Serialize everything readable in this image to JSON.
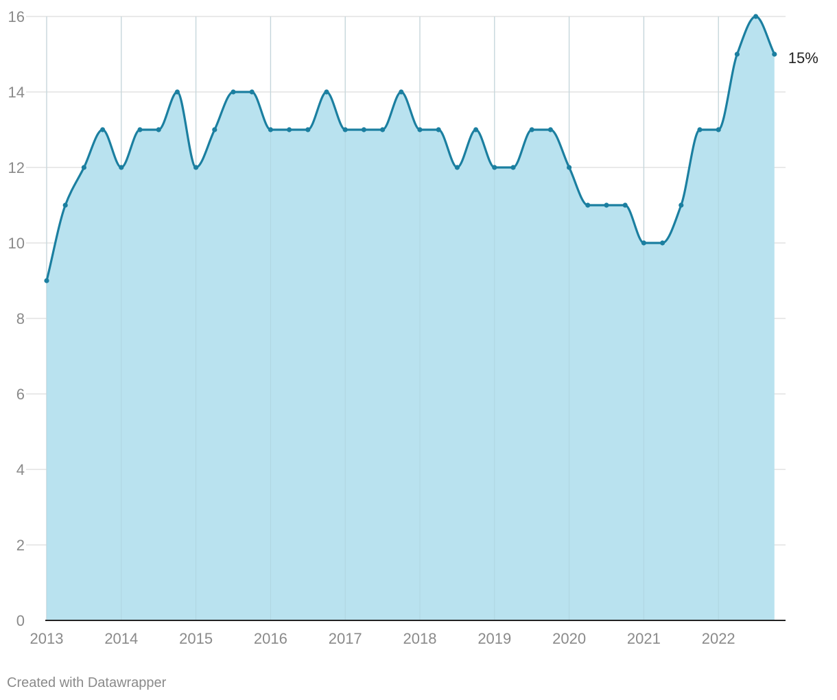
{
  "chart_data": {
    "type": "area",
    "x": [
      "2013 Q1",
      "2013 Q2",
      "2013 Q3",
      "2013 Q4",
      "2014 Q1",
      "2014 Q2",
      "2014 Q3",
      "2014 Q4",
      "2015 Q1",
      "2015 Q2",
      "2015 Q3",
      "2015 Q4",
      "2016 Q1",
      "2016 Q2",
      "2016 Q3",
      "2016 Q4",
      "2017 Q1",
      "2017 Q2",
      "2017 Q3",
      "2017 Q4",
      "2018 Q1",
      "2018 Q2",
      "2018 Q3",
      "2018 Q4",
      "2019 Q1",
      "2019 Q2",
      "2019 Q3",
      "2019 Q4",
      "2020 Q1",
      "2020 Q2",
      "2020 Q3",
      "2020 Q4",
      "2021 Q1",
      "2021 Q2",
      "2021 Q3",
      "2021 Q4",
      "2022 Q1",
      "2022 Q2",
      "2022 Q3",
      "2022 Q4"
    ],
    "series": [
      {
        "values": [
          9,
          11,
          12,
          13,
          12,
          13,
          13,
          14,
          12,
          13,
          14,
          14,
          13,
          13,
          13,
          14,
          13,
          13,
          13,
          14,
          13,
          13,
          12,
          13,
          12,
          12,
          13,
          13,
          12,
          11,
          11,
          11,
          10,
          10,
          11,
          13,
          13,
          15,
          16,
          15
        ]
      }
    ],
    "x_tick_labels": [
      "2013",
      "2014",
      "2015",
      "2016",
      "2017",
      "2018",
      "2019",
      "2020",
      "2021",
      "2022"
    ],
    "y_tick_labels": [
      "0",
      "2",
      "4",
      "6",
      "8",
      "10",
      "12",
      "14",
      "16"
    ],
    "ylim": [
      0,
      16
    ],
    "y_ticks": [
      0,
      2,
      4,
      6,
      8,
      10,
      12,
      14,
      16
    ],
    "end_label": "15%",
    "grid": true,
    "colors": {
      "line": "#1b7fa0",
      "fill": "#b9e2ef",
      "grid": "#e2e2e2",
      "axis": "#222222"
    },
    "title": "",
    "xlabel": "",
    "ylabel": ""
  },
  "footer": {
    "credit": "Created with Datawrapper"
  }
}
